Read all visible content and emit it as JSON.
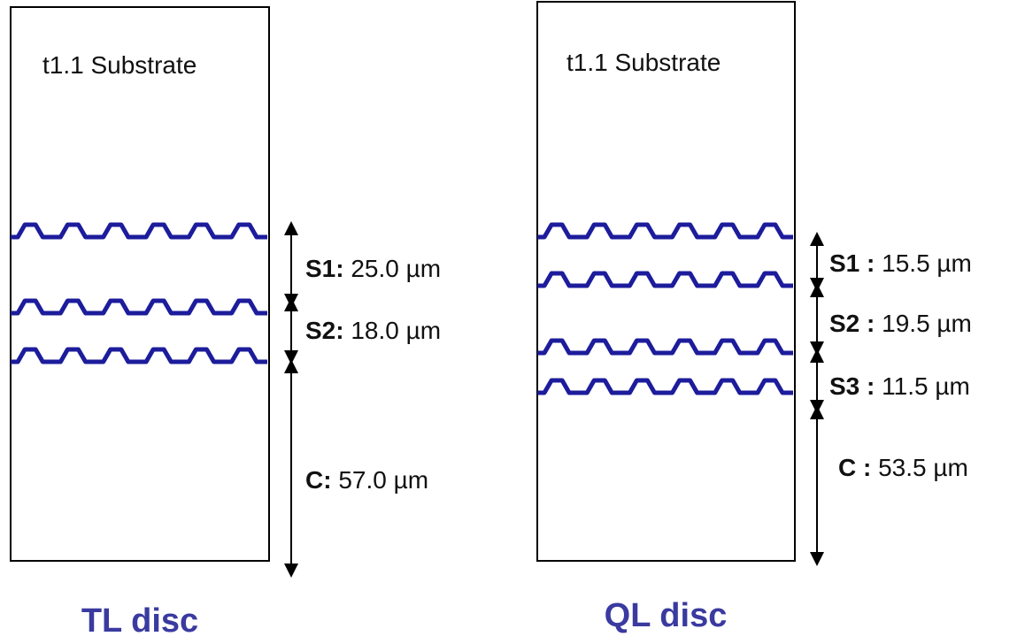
{
  "colors": {
    "layer": "#1c1c9c",
    "title": "#3a3aa0",
    "outline": "#000000"
  },
  "discs": [
    {
      "title": "TL disc",
      "substrate_label": "t1.1 Substrate",
      "layers": [
        {
          "key": "S1:",
          "value": " 25.0 µm"
        },
        {
          "key": "S2:",
          "value": " 18.0 µm"
        },
        {
          "key": "C:",
          "value": " 57.0 µm"
        }
      ]
    },
    {
      "title": "QL disc",
      "substrate_label": "t1.1 Substrate",
      "layers": [
        {
          "key": "S1 :",
          "value": " 15.5 µm"
        },
        {
          "key": "S2 :",
          "value": " 19.5 µm"
        },
        {
          "key": "S3 :",
          "value": " 11.5 µm"
        },
        {
          "key": "C :",
          "value": " 53.5 µm"
        }
      ]
    }
  ]
}
